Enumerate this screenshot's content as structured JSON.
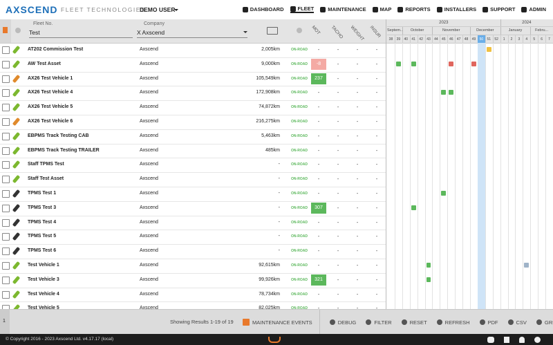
{
  "header": {
    "logo": "AXSCEND",
    "tagline": "FLEET TECHNOLOGIES",
    "user": "DEMO USER",
    "nav": [
      "DASHBOARD",
      "FLEET",
      "MAINTENANCE",
      "MAP",
      "REPORTS",
      "INSTALLERS",
      "SUPPORT",
      "ADMIN"
    ],
    "active_nav": "FLEET"
  },
  "filters": {
    "fleet_no_label": "Fleet No.",
    "fleet_no": "Test",
    "company_label": "Company",
    "company": "X Axscend"
  },
  "columns": [
    "MOT",
    "TACHO",
    "WEIGHT",
    "INSUR"
  ],
  "timeline": {
    "years": [
      {
        "label": "2023",
        "weeks": 15
      },
      {
        "label": "2024",
        "weeks": 7
      }
    ],
    "months": [
      {
        "label": "Septem...",
        "weeks": 2
      },
      {
        "label": "October",
        "weeks": 4
      },
      {
        "label": "November",
        "weeks": 5
      },
      {
        "label": "December",
        "weeks": 4
      },
      {
        "label": "January",
        "weeks": 4
      },
      {
        "label": "Febru...",
        "weeks": 3
      }
    ],
    "weeks": [
      38,
      39,
      40,
      41,
      42,
      43,
      44,
      45,
      46,
      47,
      48,
      49,
      50,
      51,
      52,
      1,
      2,
      3,
      4,
      5,
      6,
      7
    ],
    "current_week": 50
  },
  "rows": [
    {
      "name": "AT202 Commission Test",
      "company": "Axscend",
      "mileage": "2,005km",
      "status": "ON-ROAD",
      "mot": "-",
      "tacho": "-",
      "weight": "-",
      "insur": "-",
      "icon_color": "#7cb82f",
      "events": [
        {
          "week": 51,
          "color": "#f0c040"
        }
      ]
    },
    {
      "name": "AW Test Asset",
      "company": "Axscend",
      "mileage": "9,000km",
      "status": "ON-ROAD",
      "mot": "-8",
      "mot_color": "#f4aaa4",
      "tacho": "-",
      "weight": "-",
      "insur": "-",
      "icon_color": "#7cb82f",
      "events": [
        {
          "week": 39,
          "color": "#5cb85c"
        },
        {
          "week": 41,
          "color": "#5cb85c"
        },
        {
          "week": 46,
          "color": "#e0665e"
        },
        {
          "week": 49,
          "color": "#e0665e"
        }
      ]
    },
    {
      "name": "AX26 Test Vehicle 1",
      "company": "Axscend",
      "mileage": "105,549km",
      "status": "ON-ROAD",
      "mot": "237",
      "mot_color": "#5cb85c",
      "tacho": "-",
      "weight": "-",
      "insur": "-",
      "icon_color": "#e08a2c",
      "events": []
    },
    {
      "name": "AX26 Test Vehicle 4",
      "company": "Axscend",
      "mileage": "172,908km",
      "status": "ON-ROAD",
      "mot": "-",
      "tacho": "-",
      "weight": "-",
      "insur": "-",
      "icon_color": "#7cb82f",
      "events": [
        {
          "week": 45,
          "color": "#5cb85c"
        },
        {
          "week": 46,
          "color": "#5cb85c"
        }
      ]
    },
    {
      "name": "AX26 Test Vehicle 5",
      "company": "Axscend",
      "mileage": "74,872km",
      "status": "ON-ROAD",
      "mot": "-",
      "tacho": "-",
      "weight": "-",
      "insur": "-",
      "icon_color": "#7cb82f",
      "events": []
    },
    {
      "name": "AX26 Test Vehicle 6",
      "company": "Axscend",
      "mileage": "216,275km",
      "status": "ON-ROAD",
      "mot": "-",
      "tacho": "-",
      "weight": "-",
      "insur": "-",
      "icon_color": "#e08a2c",
      "events": []
    },
    {
      "name": "EBPMS Track Testing CAB",
      "company": "Axscend",
      "mileage": "5,463km",
      "status": "ON-ROAD",
      "mot": "-",
      "tacho": "-",
      "weight": "-",
      "insur": "-",
      "icon_color": "#7cb82f",
      "events": []
    },
    {
      "name": "EBPMS Track Testing TRAILER",
      "company": "Axscend",
      "mileage": "485km",
      "status": "ON-ROAD",
      "mot": "-",
      "tacho": "-",
      "weight": "-",
      "insur": "-",
      "icon_color": "#7cb82f",
      "events": []
    },
    {
      "name": "Staff TPMS Test",
      "company": "Axscend",
      "mileage": "-",
      "status": "ON-ROAD",
      "mot": "-",
      "tacho": "-",
      "weight": "-",
      "insur": "-",
      "icon_color": "#7cb82f",
      "events": []
    },
    {
      "name": "Staff Test Asset",
      "company": "Axscend",
      "mileage": "-",
      "status": "ON-ROAD",
      "mot": "-",
      "tacho": "-",
      "weight": "-",
      "insur": "-",
      "icon_color": "#7cb82f",
      "events": []
    },
    {
      "name": "TPMS Test 1",
      "company": "Axscend",
      "mileage": "-",
      "status": "ON-ROAD",
      "mot": "-",
      "tacho": "-",
      "weight": "-",
      "insur": "-",
      "icon_color": "#333333",
      "events": [
        {
          "week": 45,
          "color": "#5cb85c"
        }
      ]
    },
    {
      "name": "TPMS Test 3",
      "company": "Axscend",
      "mileage": "-",
      "status": "ON-ROAD",
      "mot": "307",
      "mot_color": "#5cb85c",
      "tacho": "-",
      "weight": "-",
      "insur": "-",
      "icon_color": "#333333",
      "events": [
        {
          "week": 41,
          "color": "#5cb85c"
        }
      ]
    },
    {
      "name": "TPMS Test 4",
      "company": "Axscend",
      "mileage": "-",
      "status": "ON-ROAD",
      "mot": "-",
      "tacho": "-",
      "weight": "-",
      "insur": "-",
      "icon_color": "#333333",
      "events": []
    },
    {
      "name": "TPMS Test 5",
      "company": "Axscend",
      "mileage": "-",
      "status": "ON-ROAD",
      "mot": "-",
      "tacho": "-",
      "weight": "-",
      "insur": "-",
      "icon_color": "#333333",
      "events": []
    },
    {
      "name": "TPMS Test 6",
      "company": "Axscend",
      "mileage": "-",
      "status": "ON-ROAD",
      "mot": "-",
      "tacho": "-",
      "weight": "-",
      "insur": "-",
      "icon_color": "#333333",
      "events": []
    },
    {
      "name": "Test Vehicle 1",
      "company": "Axscend",
      "mileage": "92,615km",
      "status": "ON-ROAD",
      "mot": "-",
      "tacho": "-",
      "weight": "-",
      "insur": "-",
      "icon_color": "#7cb82f",
      "events": [
        {
          "week": 43,
          "color": "#5cb85c"
        },
        {
          "week": 4,
          "color": "#9fb3c8"
        }
      ]
    },
    {
      "name": "Test Vehicle 3",
      "company": "Axscend",
      "mileage": "99,926km",
      "status": "ON-ROAD",
      "mot": "321",
      "mot_color": "#5cb85c",
      "tacho": "-",
      "weight": "-",
      "insur": "-",
      "icon_color": "#7cb82f",
      "events": [
        {
          "week": 43,
          "color": "#5cb85c"
        }
      ]
    },
    {
      "name": "Test Vehicle 4",
      "company": "Axscend",
      "mileage": "78,734km",
      "status": "ON-ROAD",
      "mot": "-",
      "tacho": "-",
      "weight": "-",
      "insur": "-",
      "icon_color": "#7cb82f",
      "events": []
    },
    {
      "name": "Test Vehicle 5",
      "company": "Axscend",
      "mileage": "82,025km",
      "status": "ON-ROAD",
      "mot": "-",
      "tacho": "-",
      "weight": "-",
      "insur": "-",
      "icon_color": "#7cb82f",
      "events": []
    }
  ],
  "footer": {
    "page": "1",
    "results": "Showing Results 1-19 of 19",
    "buttons": [
      "MAINTENANCE EVENTS",
      "DEBUG",
      "FILTER",
      "RESET",
      "REFRESH",
      "PDF",
      "CSV",
      "GRID"
    ],
    "copyright": "© Copyright 2016 - 2023 Axscend Ltd. v4.17.17 (local)"
  }
}
